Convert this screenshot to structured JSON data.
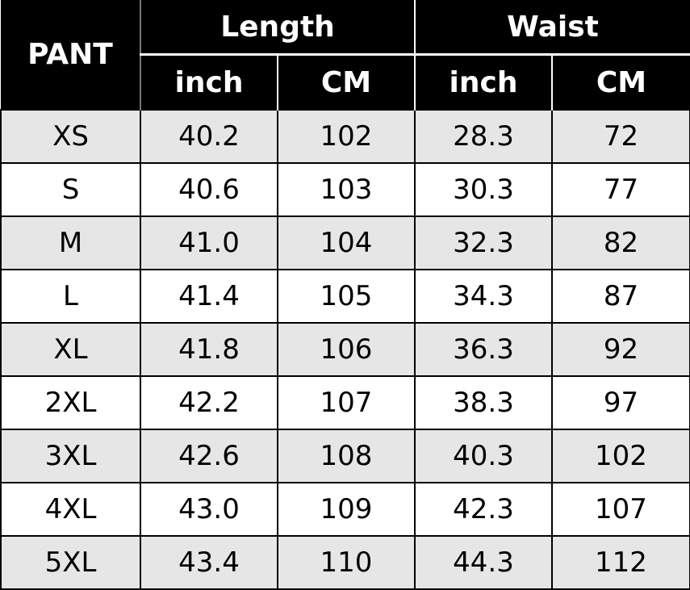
{
  "header": {
    "corner": "PANT",
    "groups": [
      "Length",
      "Waist"
    ],
    "units": [
      "inch",
      "CM",
      "inch",
      "CM"
    ]
  },
  "rows": [
    [
      "XS",
      "40.2",
      "102",
      "28.3",
      "72"
    ],
    [
      "S",
      "40.6",
      "103",
      "30.3",
      "77"
    ],
    [
      "M",
      "41.0",
      "104",
      "32.3",
      "82"
    ],
    [
      "L",
      "41.4",
      "105",
      "34.3",
      "87"
    ],
    [
      "XL",
      "41.8",
      "106",
      "36.3",
      "92"
    ],
    [
      "2XL",
      "42.2",
      "107",
      "38.3",
      "97"
    ],
    [
      "3XL",
      "42.6",
      "108",
      "40.3",
      "102"
    ],
    [
      "4XL",
      "43.0",
      "109",
      "42.3",
      "107"
    ],
    [
      "5XL",
      "43.4",
      "110",
      "44.3",
      "112"
    ]
  ],
  "colors": {
    "header_bg": "#000000",
    "header_text": "#ffffff",
    "stripe": "#e6e6e6"
  }
}
